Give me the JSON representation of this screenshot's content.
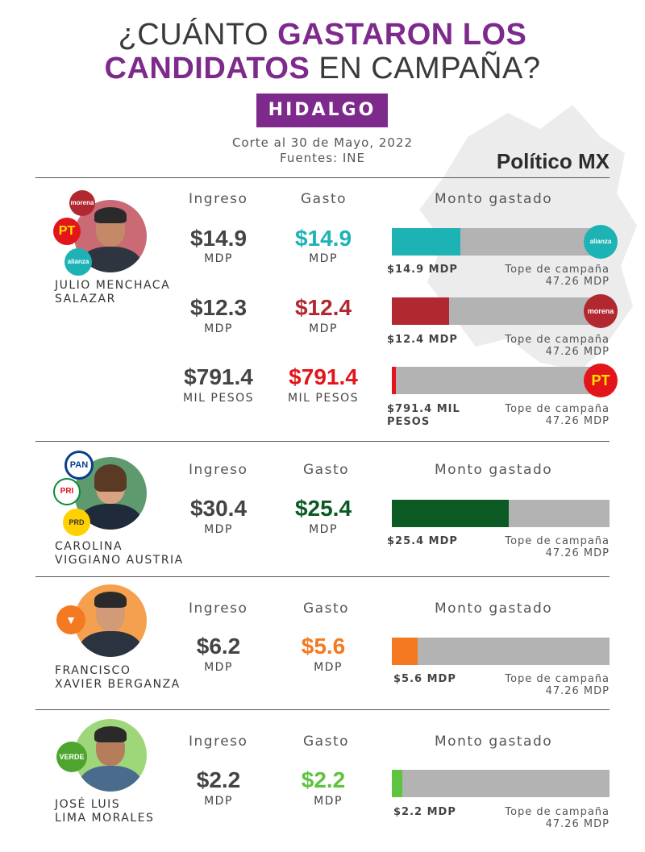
{
  "header": {
    "title_part1": "¿CUÁNTO ",
    "title_part2": "GASTARON LOS",
    "title_part3": "CANDIDATOS",
    "title_part4": " EN CAMPAÑA?",
    "state": "HIDALGO",
    "cutoff": "Corte al 30 de Mayo, 2022",
    "sources": "Fuentes: INE",
    "brand": "Político MX"
  },
  "columns": {
    "ingreso": "Ingreso",
    "gasto": "Gasto",
    "monto": "Monto gastado"
  },
  "tope_line1": "Tope de campaña",
  "tope_line2": "47.26 MDP",
  "colors": {
    "purple": "#7d2a8c",
    "teal": "#1db3b5",
    "morena": "#b22830",
    "pt": "#e3151a",
    "pan_pri_prd": "#0b5a23",
    "mc": "#f47920",
    "verde": "#5ec43f",
    "bar_bg": "#b3b3b3"
  },
  "chart_data": {
    "type": "bar",
    "title": "¿CUÁNTO GASTARON LOS CANDIDATOS EN CAMPAÑA?",
    "subtitle": "HIDALGO",
    "cap": 47.26,
    "cap_unit": "MDP",
    "candidates": [
      {
        "name_line1": "JULIO MENCHACA",
        "name_line2": "SALAZAR",
        "parties": [
          "morena",
          "PT",
          "alianza"
        ],
        "rows": [
          {
            "ingreso": "$14.9",
            "ingreso_unit": "MDP",
            "gasto": "$14.9",
            "gasto_unit": "MDP",
            "spent_mdp": 14.9,
            "bar_label": "$14.9 MDP",
            "party_logo": "alianza",
            "color": "#1db3b5"
          },
          {
            "ingreso": "$12.3",
            "ingreso_unit": "MDP",
            "gasto": "$12.4",
            "gasto_unit": "MDP",
            "spent_mdp": 12.4,
            "bar_label": "$12.4 MDP",
            "party_logo": "morena",
            "color": "#b22830"
          },
          {
            "ingreso": "$791.4",
            "ingreso_unit": "MIL PESOS",
            "gasto": "$791.4",
            "gasto_unit": "MIL PESOS",
            "spent_mdp": 0.7914,
            "bar_label": "$791.4 MIL PESOS",
            "party_logo": "PT",
            "color": "#e3151a"
          }
        ]
      },
      {
        "name_line1": "CAROLINA",
        "name_line2": "VIGGIANO AUSTRIA",
        "parties": [
          "PAN",
          "PRI",
          "PRD"
        ],
        "rows": [
          {
            "ingreso": "$30.4",
            "ingreso_unit": "MDP",
            "gasto": "$25.4",
            "gasto_unit": "MDP",
            "spent_mdp": 25.4,
            "bar_label": "$25.4 MDP",
            "color": "#0b5a23"
          }
        ]
      },
      {
        "name_line1": "FRANCISCO",
        "name_line2": "XAVIER BERGANZA",
        "parties": [
          "MC"
        ],
        "rows": [
          {
            "ingreso": "$6.2",
            "ingreso_unit": "MDP",
            "gasto": "$5.6",
            "gasto_unit": "MDP",
            "spent_mdp": 5.6,
            "bar_label": "$5.6 MDP",
            "color": "#f47920"
          }
        ]
      },
      {
        "name_line1": "JOSÉ LUIS",
        "name_line2": "LIMA MORALES",
        "parties": [
          "VERDE"
        ],
        "rows": [
          {
            "ingreso": "$2.2",
            "ingreso_unit": "MDP",
            "gasto": "$2.2",
            "gasto_unit": "MDP",
            "spent_mdp": 2.2,
            "bar_label": "$2.2 MDP",
            "color": "#5ec43f"
          }
        ]
      }
    ]
  },
  "logos": {
    "morena": "morena",
    "pt": "PT",
    "alianza": "alianza",
    "pan": "PAN",
    "pri": "PRI",
    "prd": "PRD",
    "verde": "VERDE"
  }
}
